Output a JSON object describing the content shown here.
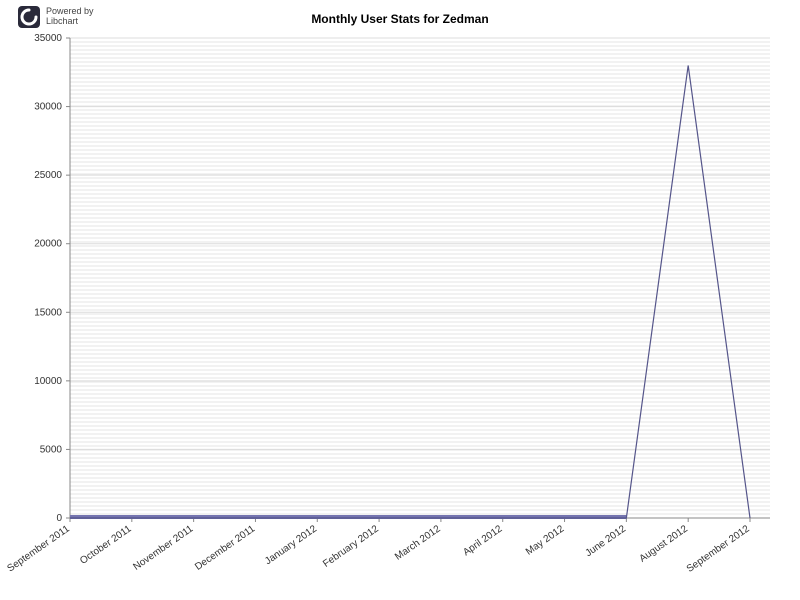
{
  "logo": {
    "line1": "Powered by",
    "line2": "Libchart",
    "icon_colors": {
      "bg": "#2a2a3a",
      "fg": "#ffffff"
    }
  },
  "chart": {
    "type": "line",
    "title": "Monthly User Stats for Zedman",
    "title_fontsize": 12,
    "background_color": "#ffffff",
    "grid_color": "#e6e6e6",
    "axis_color": "#888888",
    "line_color": "#55558a",
    "base_band_color": "#7575b0",
    "y": {
      "min": 0,
      "max": 35000,
      "ticks": [
        0,
        5000,
        10000,
        15000,
        20000,
        25000,
        30000,
        35000
      ],
      "tick_labels": [
        "0",
        "5000",
        "10000",
        "15000",
        "20000",
        "25000",
        "30000",
        "35000"
      ],
      "label_fontsize": 10
    },
    "x": {
      "categories": [
        "September 2011",
        "October 2011",
        "November 2011",
        "December 2011",
        "January 2012",
        "February 2012",
        "March 2012",
        "April 2012",
        "May 2012",
        "June 2012",
        "August 2012",
        "September 2012"
      ],
      "label_fontsize": 10,
      "label_rotation": -35
    },
    "values": [
      0,
      0,
      0,
      0,
      0,
      0,
      0,
      0,
      0,
      0,
      33000,
      0
    ]
  }
}
